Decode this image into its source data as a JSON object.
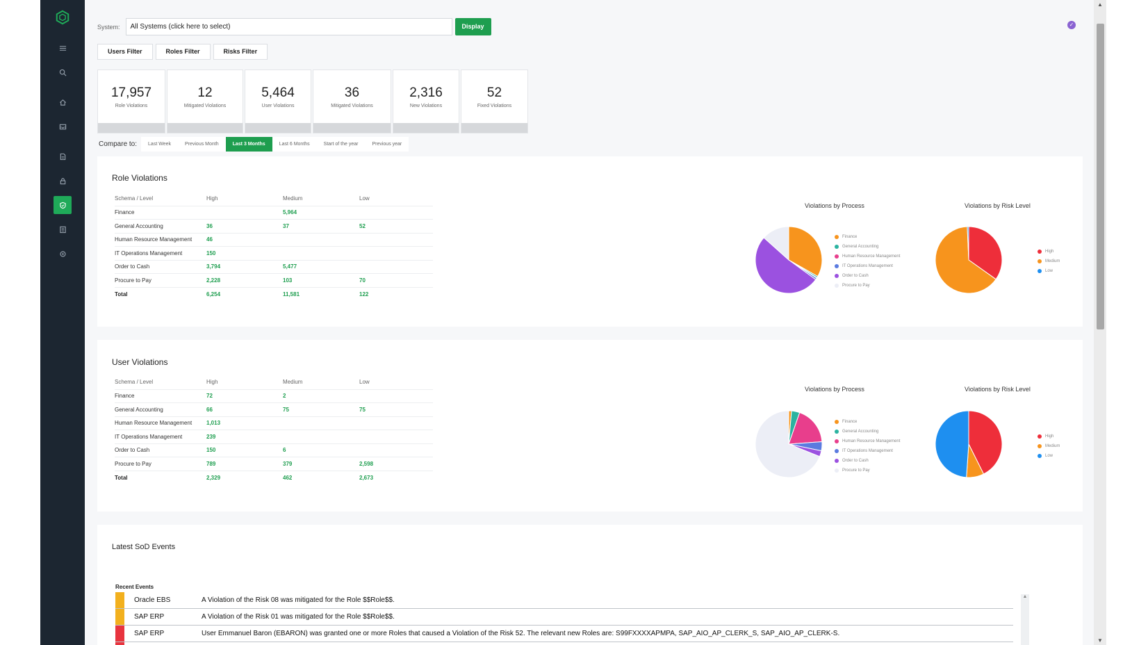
{
  "system": {
    "label": "System:",
    "value": "All Systems (click here to select)",
    "display_label": "Display"
  },
  "filters": [
    "Users Filter",
    "Roles Filter",
    "Risks Filter"
  ],
  "kpis": [
    {
      "value": "17,957",
      "label": "Role Violations"
    },
    {
      "value": "12",
      "label": "Mitigated Violations"
    },
    {
      "value": "5,464",
      "label": "User Violations"
    },
    {
      "value": "36",
      "label": "Mitigated Violations"
    },
    {
      "value": "2,316",
      "label": "New Violations"
    },
    {
      "value": "52",
      "label": "Fixed Violations"
    }
  ],
  "compare": {
    "label": "Compare to:",
    "options": [
      "Last Week",
      "Previous Month",
      "Last 3 Months",
      "Last 6 Months",
      "Start of the year",
      "Previous year"
    ],
    "active": "Last 3 Months"
  },
  "colors": {
    "accent": "#1e9e4f",
    "sidebar": "#1c2631",
    "process": [
      "#f7941d",
      "#2bb3a0",
      "#e83e8c",
      "#5b7be0",
      "#9b51e0",
      "#eceef6"
    ],
    "risk": [
      "#ee2e3a",
      "#f7941d",
      "#1e8ff0"
    ]
  },
  "legends": {
    "process": [
      "Finance",
      "General Accounting",
      "Human Resource Management",
      "IT Operations Management",
      "Order to Cash",
      "Procure to Pay"
    ],
    "risk": [
      "High",
      "Medium",
      "Low"
    ]
  },
  "role_violations": {
    "title": "Role Violations",
    "headers": [
      "Schema / Level",
      "High",
      "Medium",
      "Low"
    ],
    "rows": [
      [
        "Finance",
        "",
        "5,964",
        ""
      ],
      [
        "General Accounting",
        "36",
        "37",
        "52"
      ],
      [
        "Human Resource Management",
        "46",
        "",
        ""
      ],
      [
        "IT Operations Management",
        "150",
        "",
        ""
      ],
      [
        "Order to Cash",
        "3,794",
        "5,477",
        ""
      ],
      [
        "Procure to Pay",
        "2,228",
        "103",
        "70"
      ]
    ],
    "total": [
      "Total",
      "6,254",
      "11,581",
      "122"
    ],
    "chart_process_title": "Violations by Process",
    "chart_risk_title": "Violations by Risk Level"
  },
  "user_violations": {
    "title": "User Violations",
    "headers": [
      "Schema / Level",
      "High",
      "Medium",
      "Low"
    ],
    "rows": [
      [
        "Finance",
        "72",
        "2",
        ""
      ],
      [
        "General Accounting",
        "66",
        "75",
        "75"
      ],
      [
        "Human Resource Management",
        "1,013",
        "",
        ""
      ],
      [
        "IT Operations Management",
        "239",
        "",
        ""
      ],
      [
        "Order to Cash",
        "150",
        "6",
        ""
      ],
      [
        "Procure to Pay",
        "789",
        "379",
        "2,598"
      ]
    ],
    "total": [
      "Total",
      "2,329",
      "462",
      "2,673"
    ],
    "chart_process_title": "Violations by Process",
    "chart_risk_title": "Violations by Risk Level"
  },
  "chart_data": [
    {
      "type": "pie",
      "title": "Violations by Process",
      "categories": [
        "Finance",
        "General Accounting",
        "Human Resource Management",
        "IT Operations Management",
        "Order to Cash",
        "Procure to Pay"
      ],
      "values": [
        5964,
        125,
        46,
        150,
        9271,
        2401
      ]
    },
    {
      "type": "pie",
      "title": "Violations by Risk Level",
      "categories": [
        "High",
        "Medium",
        "Low"
      ],
      "values": [
        6254,
        11581,
        122
      ]
    },
    {
      "type": "pie",
      "title": "Violations by Process",
      "categories": [
        "Finance",
        "General Accounting",
        "Human Resource Management",
        "IT Operations Management",
        "Order to Cash",
        "Procure to Pay"
      ],
      "values": [
        74,
        216,
        1013,
        239,
        156,
        3766
      ]
    },
    {
      "type": "pie",
      "title": "Violations by Risk Level",
      "categories": [
        "High",
        "Medium",
        "Low"
      ],
      "values": [
        2329,
        462,
        2673
      ]
    }
  ],
  "events": {
    "title": "Latest SoD Events",
    "recent_label": "Recent Events",
    "items": [
      {
        "system": "Oracle EBS",
        "text": "A Violation of the Risk 08 was mitigated for the Role $$Role$$.",
        "color": "#f2b01e"
      },
      {
        "system": "SAP ERP",
        "text": "A Violation of the Risk 01 was mitigated for the Role $$Role$$.",
        "color": "#f2b01e"
      },
      {
        "system": "SAP ERP",
        "text": "User Emmanuel Baron (EBARON) was granted one or more Roles that caused a Violation of the Risk 52. The relevant new Roles are: S99FXXXXAPMPA, SAP_AIO_AP_CLERK_S, SAP_AIO_AP_CLERK-S.",
        "color": "#e8343e"
      },
      {
        "system": "",
        "text": "",
        "color": "#e8343e"
      }
    ]
  },
  "sidebar_icons": [
    "menu-icon",
    "search-icon",
    "home-icon",
    "inbox-icon",
    "document-icon",
    "lock-icon",
    "shield-icon",
    "list-icon",
    "settings-icon"
  ]
}
